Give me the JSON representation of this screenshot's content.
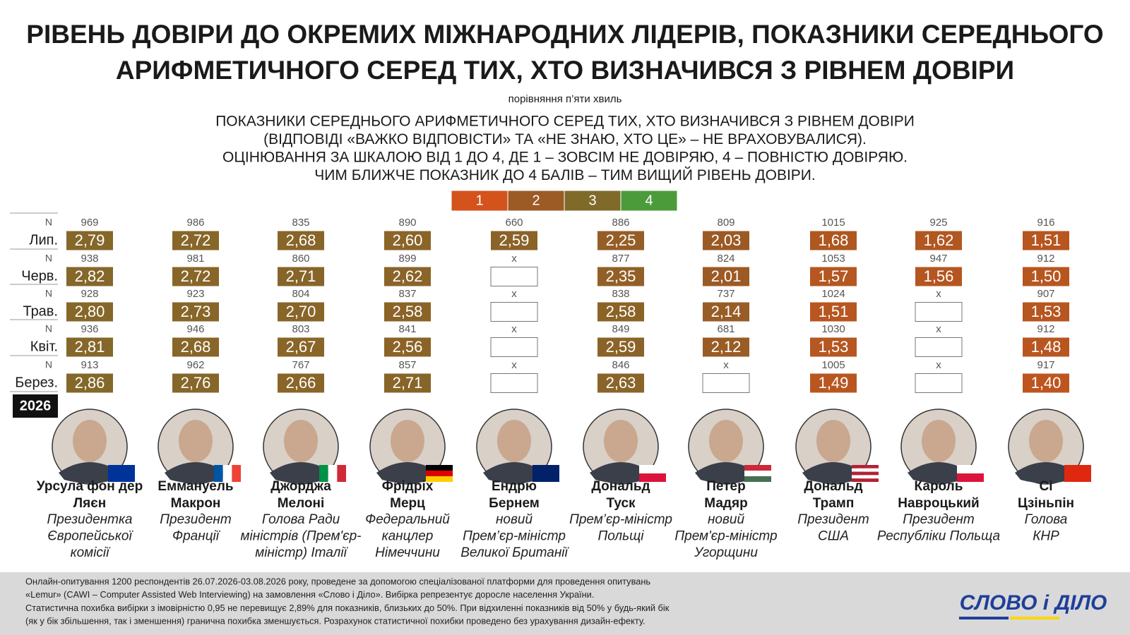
{
  "header": {
    "title": [
      "РІВЕНЬ ДОВІРИ ДО ОКРЕМИХ МІЖНАРОДНИХ ЛІДЕРІВ, ПОКАЗНИКИ СЕРЕДНЬОГО",
      "АРИФМЕТИЧНОГО СЕРЕД ТИХ, ХТО ВИЗНАЧИВСЯ З РІВНЕМ ДОВІРИ"
    ],
    "subtitle": "порівняння п’яти хвиль",
    "description": [
      "ПОКАЗНИКИ СЕРЕДНЬОГО АРИФМЕТИЧНОГО СЕРЕД ТИХ, ХТО ВИЗНАЧИВСЯ З РІВНЕМ ДОВІРИ",
      "(ВІДПОВІДІ «ВАЖКО ВІДПОВІСТИ» ТА «НЕ ЗНАЮ, ХТО ЦЕ» – НЕ ВРАХОВУВАЛИСЯ).",
      "ОЦІНЮВАННЯ ЗА ШКАЛОЮ ВІД 1 ДО 4, ДЕ 1 – ЗОВСІМ НЕ ДОВІРЯЮ, 4 – ПОВНІСТЮ ДОВІРЯЮ.",
      "ЧИМ БЛИЖЧЕ ПОКАЗНИК ДО 4 БАЛІВ – ТИМ ВИЩИЙ РІВЕНЬ ДОВІРИ."
    ]
  },
  "scale": [
    {
      "label": "1",
      "color": "#d4521c"
    },
    {
      "label": "2",
      "color": "#9c5a24"
    },
    {
      "label": "3",
      "color": "#7f6a2a"
    },
    {
      "label": "4",
      "color": "#4b9b3b"
    }
  ],
  "table": {
    "n_label": "N",
    "year": "2026",
    "months": [
      "Лип.",
      "Черв.",
      "Трав.",
      "Квіт.",
      "Берез."
    ],
    "leaders": [
      {
        "name": [
          "Урсула фон дер",
          "Ляєн"
        ],
        "role": [
          "Президентка",
          "Європейської",
          "комісії"
        ],
        "n": [
          "969",
          "938",
          "928",
          "936",
          "913"
        ],
        "values": [
          "2,79",
          "2,82",
          "2,80",
          "2,81",
          "2,86"
        ]
      },
      {
        "name": [
          "Еммануель",
          "Макрон"
        ],
        "role": [
          "Президент",
          "Франції"
        ],
        "n": [
          "986",
          "981",
          "923",
          "946",
          "962"
        ],
        "values": [
          "2,72",
          "2,72",
          "2,73",
          "2,68",
          "2,76"
        ]
      },
      {
        "name": [
          "Джорджа",
          "Мелоні"
        ],
        "role": [
          "Голова Ради",
          "міністрів (Прем'єр-",
          "міністр) Італії"
        ],
        "n": [
          "835",
          "860",
          "804",
          "803",
          "767"
        ],
        "values": [
          "2,68",
          "2,71",
          "2,70",
          "2,67",
          "2,66"
        ]
      },
      {
        "name": [
          "Фрідріх",
          "Мерц"
        ],
        "role": [
          "Федеральний",
          "канцлер",
          "Німеччини"
        ],
        "n": [
          "890",
          "899",
          "837",
          "841",
          "857"
        ],
        "values": [
          "2,60",
          "2,62",
          "2,58",
          "2,56",
          "2,71"
        ]
      },
      {
        "name": [
          "Ендрю",
          "Бернем"
        ],
        "role": [
          "новий",
          "Прем’єр-міністр",
          "Великої Британії"
        ],
        "n": [
          "660",
          "x",
          "x",
          "x",
          "x"
        ],
        "values": [
          "2,59",
          null,
          null,
          null,
          null
        ]
      },
      {
        "name": [
          "Дональд",
          "Туск"
        ],
        "role": [
          "Прем’єр-міністр",
          "Польщі"
        ],
        "n": [
          "886",
          "877",
          "838",
          "849",
          "846"
        ],
        "values": [
          "2,25",
          "2,35",
          "2,58",
          "2,59",
          "2,63"
        ]
      },
      {
        "name": [
          "Петер",
          "Мадяр"
        ],
        "role": [
          "новий",
          "Прем'єр-міністр",
          "Угорщини"
        ],
        "n": [
          "809",
          "824",
          "737",
          "681",
          "x"
        ],
        "values": [
          "2,03",
          "2,01",
          "2,14",
          "2,12",
          null
        ]
      },
      {
        "name": [
          "Дональд",
          "Трамп"
        ],
        "role": [
          "Президент",
          "США"
        ],
        "n": [
          "1015",
          "1053",
          "1024",
          "1030",
          "1005"
        ],
        "values": [
          "1,68",
          "1,57",
          "1,51",
          "1,53",
          "1,49"
        ]
      },
      {
        "name": [
          "Кароль",
          "Навроцький"
        ],
        "role": [
          "Президент",
          "Республіки Польща"
        ],
        "n": [
          "925",
          "947",
          "x",
          "x",
          "x"
        ],
        "values": [
          "1,62",
          "1,56",
          null,
          null,
          null
        ]
      },
      {
        "name": [
          "Сі",
          "Цзіньпін"
        ],
        "role": [
          "Голова",
          "КНР"
        ],
        "n": [
          "916",
          "912",
          "907",
          "912",
          "917"
        ],
        "values": [
          "1,51",
          "1,50",
          "1,53",
          "1,48",
          "1,40"
        ]
      }
    ]
  },
  "footer": {
    "text": [
      "Онлайн-опитування 1200 респондентів 26.07.2026-03.08.2026 року, проведене за допомогою спеціалізованої платформи для проведення опитувань",
      "«Lemur» (CAWI – Computer Assisted Web Interviewing) на замовлення «Слово і Діло». Вибірка репрезентує доросле населення України.",
      "Статистична похибка вибірки з імовірністю 0,95 не перевищує 2,89% для показників, близьких до 50%. При відхиленні показників від 50% у будь-який бік",
      "(як у бік збільшення, так і зменшення) гранична похибка зменшується. Розрахунок статистичної похибки проведено без урахування дизайн-ефекту."
    ],
    "logo": "СЛОВО і ДІЛО"
  }
}
